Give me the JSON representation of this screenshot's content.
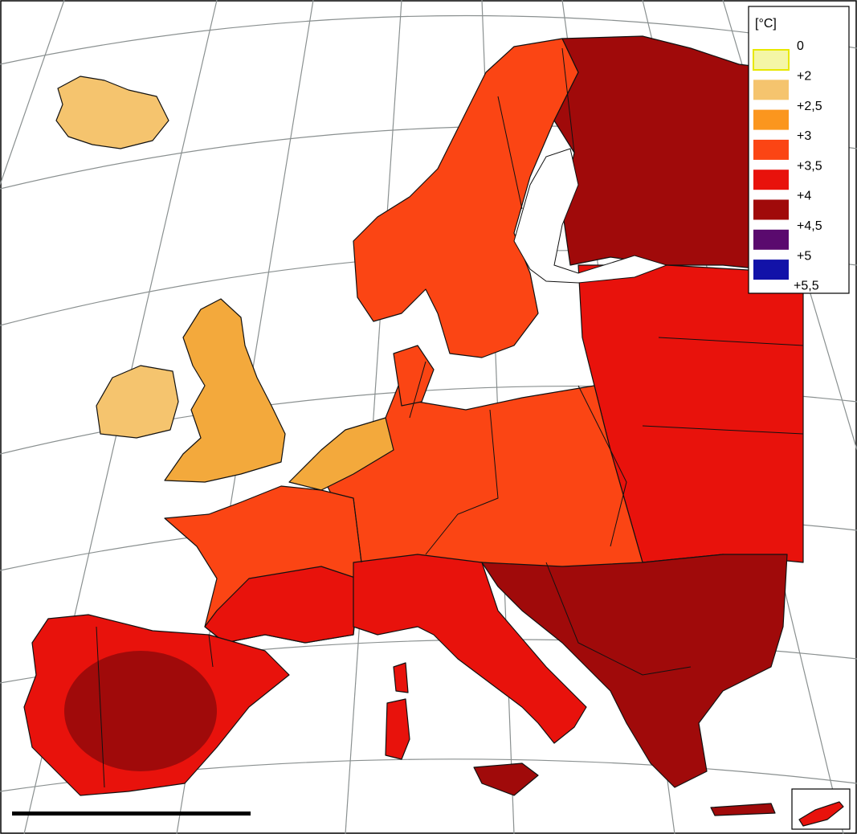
{
  "legend": {
    "title": "[°C]",
    "labels": [
      "0",
      "+2",
      "+2,5",
      "+3",
      "+3,5",
      "+4",
      "+4,5",
      "+5",
      "+5,5"
    ],
    "colors": [
      "#f4f6a6",
      "#f5c46e",
      "#fb961e",
      "#fb4514",
      "#e8120c",
      "#a00a0a",
      "#5a0a6e",
      "#1212a8"
    ]
  }
}
